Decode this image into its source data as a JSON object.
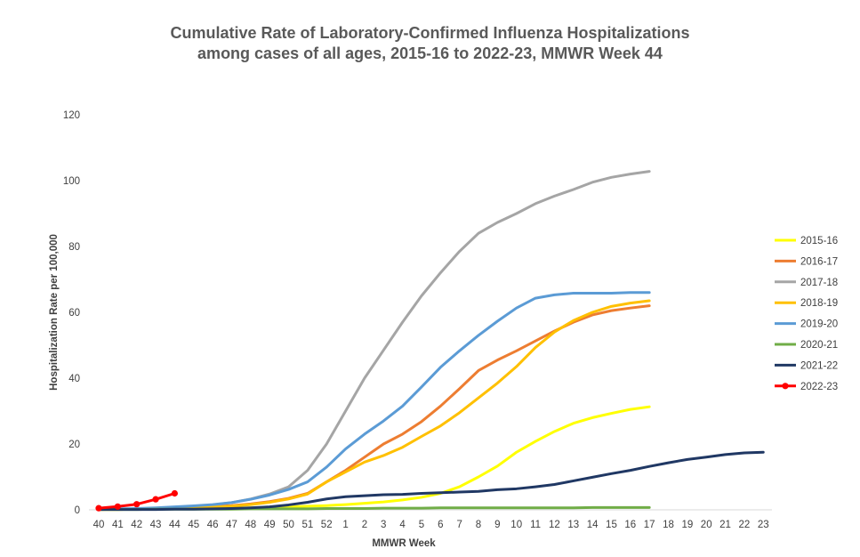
{
  "chart_data": {
    "type": "line",
    "title": [
      "Cumulative Rate of Laboratory-Confirmed Influenza Hospitalizations",
      "among cases of all ages, 2015-16 to 2022-23, MMWR Week 44"
    ],
    "xlabel": "MMWR Week",
    "ylabel": "Hospitalization  Rate per 100,000",
    "ylim": [
      0,
      120
    ],
    "yticks": [
      0,
      20,
      40,
      60,
      80,
      100,
      120
    ],
    "grid": false,
    "legend_position": "right",
    "x": [
      "40",
      "41",
      "42",
      "43",
      "44",
      "45",
      "46",
      "47",
      "48",
      "49",
      "50",
      "51",
      "52",
      "1",
      "2",
      "3",
      "4",
      "5",
      "6",
      "7",
      "8",
      "9",
      "10",
      "11",
      "12",
      "13",
      "14",
      "15",
      "16",
      "17",
      "18",
      "19",
      "20",
      "21",
      "22",
      "23"
    ],
    "series": [
      {
        "name": "2015-16",
        "color": "#FFFF00",
        "marker": false,
        "values": [
          0.1,
          0.1,
          0.2,
          0.2,
          0.3,
          0.3,
          0.4,
          0.5,
          0.6,
          0.7,
          0.9,
          1.1,
          1.3,
          1.6,
          2.0,
          2.4,
          3.0,
          3.8,
          5.0,
          7.0,
          10.0,
          13.3,
          17.5,
          20.8,
          23.8,
          26.3,
          28.0,
          29.3,
          30.5,
          31.3,
          null,
          null,
          null,
          null,
          null,
          null
        ]
      },
      {
        "name": "2016-17",
        "color": "#ED7D31",
        "marker": false,
        "values": [
          0.1,
          0.2,
          0.3,
          0.4,
          0.5,
          0.7,
          1.0,
          1.3,
          1.8,
          2.5,
          3.5,
          5.0,
          8.5,
          12.0,
          16.0,
          20.0,
          23.0,
          26.8,
          31.5,
          36.8,
          42.3,
          45.5,
          48.3,
          51.3,
          54.3,
          57.0,
          59.2,
          60.5,
          61.3,
          62.0,
          null,
          null,
          null,
          null,
          null,
          null
        ]
      },
      {
        "name": "2017-18",
        "color": "#A5A5A5",
        "marker": false,
        "values": [
          0.1,
          0.2,
          0.3,
          0.5,
          0.7,
          1.0,
          1.5,
          2.2,
          3.3,
          4.8,
          7.0,
          12.0,
          20.0,
          30.0,
          40.0,
          48.5,
          57.0,
          65.0,
          72.0,
          78.5,
          84.0,
          87.3,
          90.0,
          93.0,
          95.3,
          97.3,
          99.5,
          101.0,
          102.0,
          102.8,
          null,
          null,
          null,
          null,
          null,
          null
        ]
      },
      {
        "name": "2018-19",
        "color": "#FFC000",
        "marker": false,
        "values": [
          0.1,
          0.1,
          0.2,
          0.3,
          0.4,
          0.6,
          0.8,
          1.1,
          1.6,
          2.3,
          3.3,
          4.8,
          8.5,
          11.5,
          14.5,
          16.5,
          19.0,
          22.3,
          25.5,
          29.5,
          34.0,
          38.5,
          43.5,
          49.3,
          54.0,
          57.5,
          60.0,
          61.8,
          62.8,
          63.5,
          null,
          null,
          null,
          null,
          null,
          null
        ]
      },
      {
        "name": "2019-20",
        "color": "#5B9BD5",
        "marker": false,
        "values": [
          0.2,
          0.3,
          0.4,
          0.6,
          0.9,
          1.2,
          1.6,
          2.2,
          3.2,
          4.5,
          6.2,
          8.5,
          13.0,
          18.5,
          23.0,
          27.0,
          31.5,
          37.3,
          43.3,
          48.3,
          53.0,
          57.3,
          61.3,
          64.3,
          65.3,
          65.8,
          65.8,
          65.8,
          66.0,
          66.0,
          null,
          null,
          null,
          null,
          null,
          null
        ]
      },
      {
        "name": "2020-21",
        "color": "#70AD47",
        "marker": false,
        "values": [
          0.1,
          0.1,
          0.1,
          0.2,
          0.2,
          0.2,
          0.2,
          0.2,
          0.3,
          0.3,
          0.3,
          0.3,
          0.4,
          0.4,
          0.4,
          0.5,
          0.5,
          0.5,
          0.6,
          0.6,
          0.6,
          0.6,
          0.6,
          0.6,
          0.6,
          0.6,
          0.7,
          0.7,
          0.7,
          0.7,
          null,
          null,
          null,
          null,
          null,
          null
        ]
      },
      {
        "name": "2021-22",
        "color": "#203864",
        "marker": false,
        "values": [
          0.1,
          0.1,
          0.1,
          0.1,
          0.2,
          0.2,
          0.3,
          0.4,
          0.6,
          0.9,
          1.5,
          2.3,
          3.3,
          4.0,
          4.3,
          4.6,
          4.7,
          5.0,
          5.2,
          5.4,
          5.6,
          6.1,
          6.4,
          7.0,
          7.7,
          8.8,
          9.9,
          11.0,
          12.0,
          13.2,
          14.3,
          15.3,
          16.0,
          16.8,
          17.3,
          17.5
        ]
      },
      {
        "name": "2022-23",
        "color": "#FF0000",
        "marker": true,
        "values": [
          0.5,
          1.0,
          1.7,
          3.2,
          5.0,
          null,
          null,
          null,
          null,
          null,
          null,
          null,
          null,
          null,
          null,
          null,
          null,
          null,
          null,
          null,
          null,
          null,
          null,
          null,
          null,
          null,
          null,
          null,
          null,
          null,
          null,
          null,
          null,
          null,
          null,
          null
        ]
      }
    ]
  }
}
